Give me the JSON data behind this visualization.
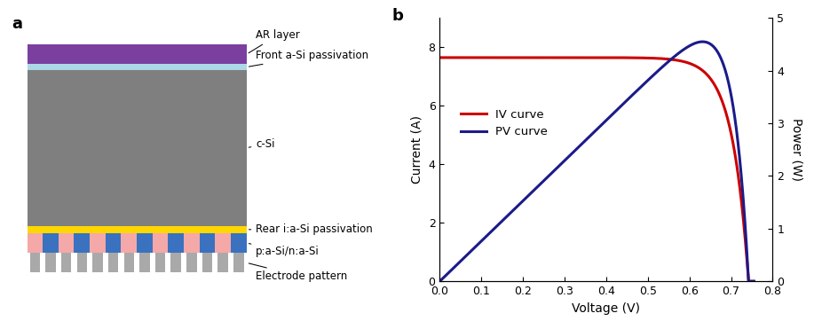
{
  "panel_a_label": "a",
  "panel_b_label": "b",
  "layers": {
    "ar_layer": {
      "color": "#7B3FA0",
      "label": "AR layer"
    },
    "front_asi": {
      "color": "#ADD8E6",
      "label": "Front a-Si passivation"
    },
    "c_si": {
      "color": "#7F7F7F",
      "label": "c-Si"
    },
    "rear_iasi": {
      "color": "#FFD700",
      "label": "Rear i:a-Si passivation"
    },
    "p_n_asi": {
      "label": "p:a-Si/n:a-Si"
    },
    "electrode": {
      "label": "Electrode pattern"
    }
  },
  "electrode_colors": {
    "p": "#F4A8A8",
    "n": "#3A72C0",
    "metal": "#A9A9A9"
  },
  "iv_color": "#CC0000",
  "pv_color": "#1B1B8A",
  "Isc": 7.65,
  "Voc": 0.742,
  "xlabel": "Voltage (V)",
  "ylabel_left": "Current (A)",
  "ylabel_right": "Power (W)",
  "xlim": [
    0.0,
    0.8
  ],
  "ylim_left": [
    0.0,
    9.0
  ],
  "ylim_right": [
    0.0,
    5.0
  ],
  "xticks": [
    0.0,
    0.1,
    0.2,
    0.3,
    0.4,
    0.5,
    0.6,
    0.7,
    0.8
  ],
  "yticks_left": [
    0,
    2,
    4,
    6,
    8
  ],
  "yticks_right": [
    0,
    1,
    2,
    3,
    4,
    5
  ],
  "iv_legend": "IV curve",
  "pv_legend": "PV curve"
}
